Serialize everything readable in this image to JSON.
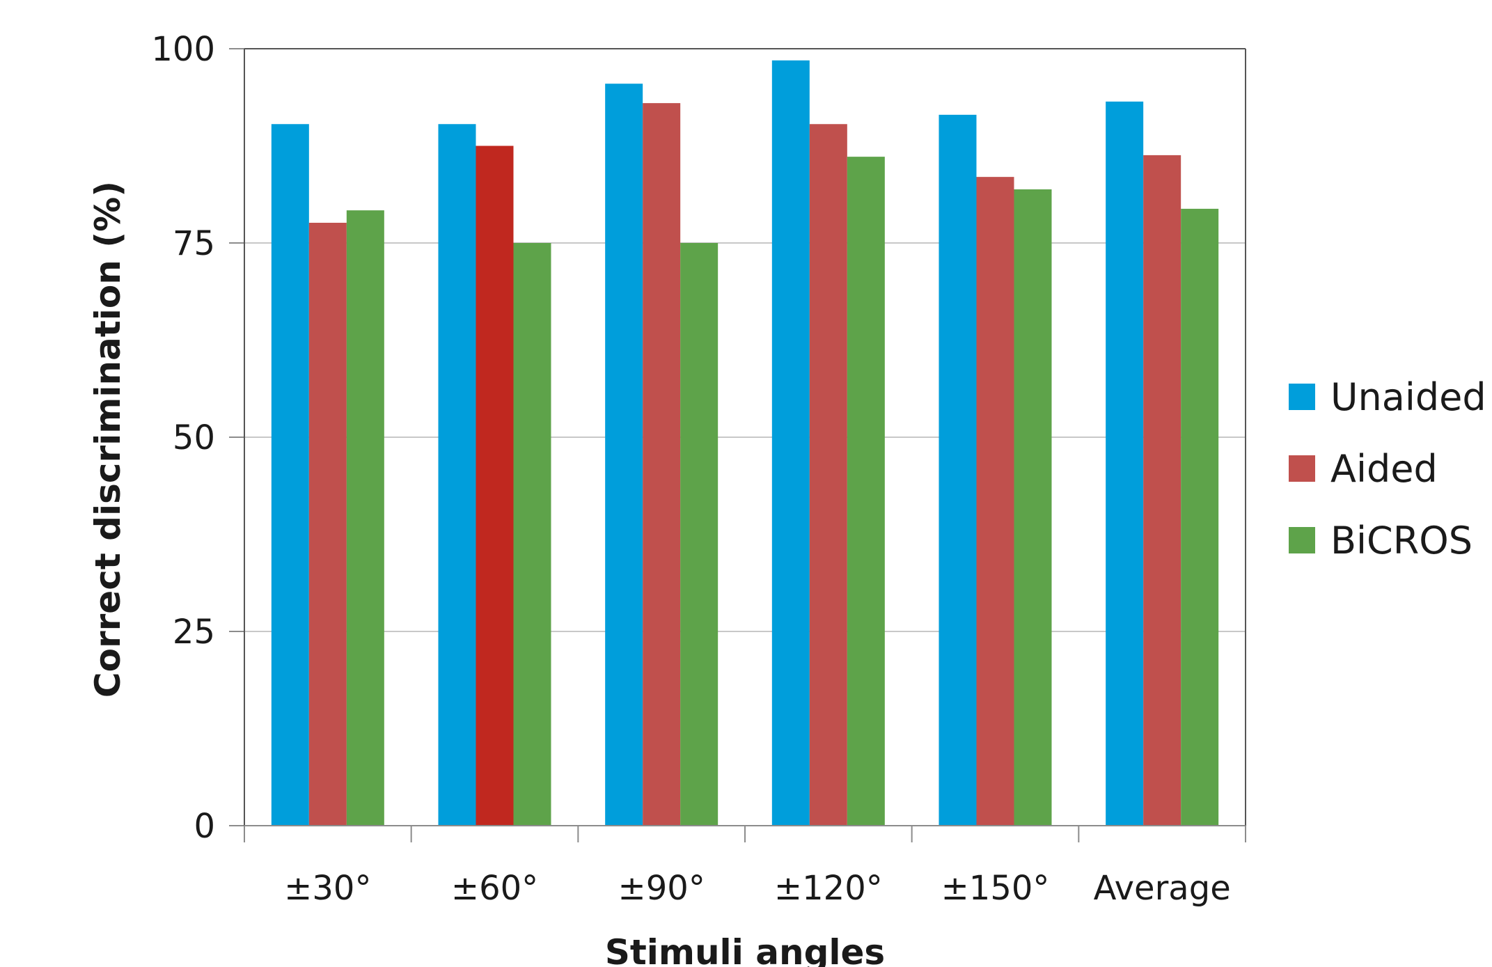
{
  "chart_data": {
    "type": "bar",
    "categories": [
      "±30°",
      "±60°",
      "±90°",
      "±120°",
      "±150°",
      "Average"
    ],
    "series": [
      {
        "name": "Unaided",
        "color": "#009EDB",
        "values": [
          90.3,
          90.3,
          95.5,
          98.5,
          91.5,
          93.2
        ]
      },
      {
        "name": "Aided",
        "color": "#C0504D",
        "values": [
          77.6,
          87.5,
          93.0,
          90.3,
          83.5,
          86.3
        ]
      },
      {
        "name": "BiCROS",
        "color": "#5EA34A",
        "values": [
          79.2,
          75.0,
          75.0,
          86.1,
          81.9,
          79.4
        ]
      }
    ],
    "highlight": {
      "series_index": 1,
      "category_index": 1,
      "color": "#C0281F"
    },
    "xlabel": "Stimuli angles",
    "ylabel": "Correct discrimination (%)",
    "ylim": [
      0,
      100
    ],
    "yticks": [
      0,
      25,
      50,
      75,
      100
    ],
    "grid": true,
    "legend_position": "right"
  }
}
